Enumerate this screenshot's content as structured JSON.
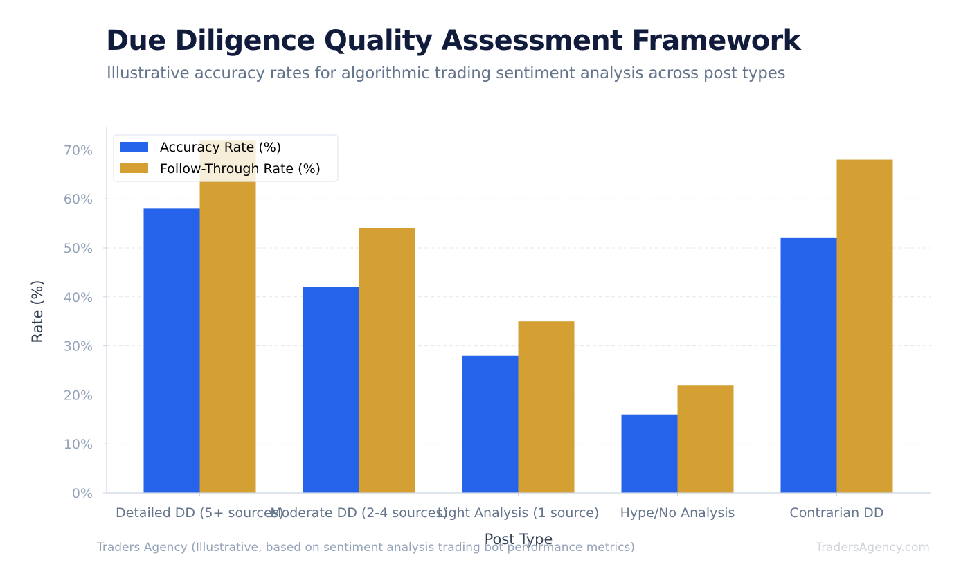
{
  "title": "Due Diligence Quality Assessment Framework",
  "subtitle": "Illustrative accuracy rates for algorithmic trading sentiment analysis across post types",
  "source": "Traders Agency (Illustrative, based on sentiment analysis trading bot performance metrics)",
  "brand": "TradersAgency.com",
  "chart_data": {
    "type": "bar",
    "categories": [
      "Detailed DD (5+ sources)",
      "Moderate DD (2-4 sources)",
      "Light Analysis (1 source)",
      "Hype/No Analysis",
      "Contrarian DD"
    ],
    "series": [
      {
        "name": "Accuracy Rate (%)",
        "color": "#2563eb",
        "values": [
          58,
          42,
          28,
          16,
          52
        ]
      },
      {
        "name": "Follow-Through Rate (%)",
        "color": "#d4a033",
        "values": [
          72,
          54,
          35,
          22,
          68
        ]
      }
    ],
    "xlabel": "Post Type",
    "ylabel": "Rate (%)",
    "ylim": [
      0,
      75
    ],
    "yticks": [
      "0%",
      "10%",
      "20%",
      "30%",
      "40%",
      "50%",
      "60%",
      "70%"
    ],
    "grid": "horizontal dashed",
    "legend": "top-left"
  }
}
